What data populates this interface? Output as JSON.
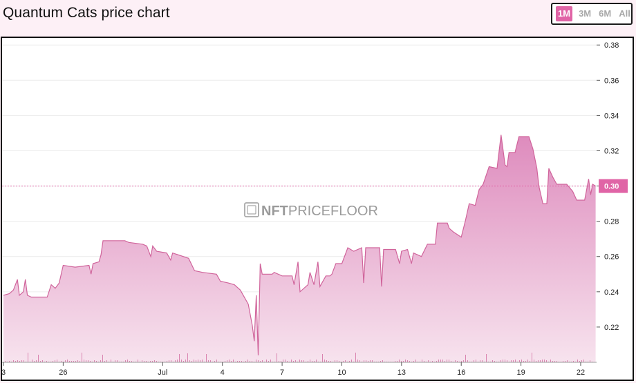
{
  "header": {
    "title": "Quantum Cats price chart",
    "ranges": [
      {
        "label": "1M",
        "active": true
      },
      {
        "label": "3M",
        "active": false
      },
      {
        "label": "6M",
        "active": false
      },
      {
        "label": "All",
        "active": false
      }
    ]
  },
  "watermark": {
    "prefix": "NFT",
    "suffix": "PRICEFLOOR"
  },
  "colors": {
    "line": "#d0649b",
    "fill_top": "#de8bbd",
    "fill_bottom": "#f7e3ee",
    "accent": "#e064a6",
    "grid": "#ececec"
  },
  "chart_data": {
    "type": "area",
    "title": "Quantum Cats price chart",
    "xlabel": "",
    "ylabel": "",
    "ylim": [
      0.2,
      0.384
    ],
    "y_ticks": [
      "0.22",
      "0.24",
      "0.26",
      "0.28",
      "0.30",
      "0.32",
      "0.34",
      "0.36",
      "0.38"
    ],
    "x_ticks": [
      {
        "label": "3",
        "day": 0
      },
      {
        "label": "26",
        "day": 3
      },
      {
        "label": "Jul",
        "day": 8
      },
      {
        "label": "4",
        "day": 11
      },
      {
        "label": "7",
        "day": 14
      },
      {
        "label": "10",
        "day": 17
      },
      {
        "label": "13",
        "day": 20
      },
      {
        "label": "16",
        "day": 23
      },
      {
        "label": "19",
        "day": 26
      },
      {
        "label": "22",
        "day": 29
      }
    ],
    "current_price": {
      "value": 0.3,
      "label": "0.30"
    },
    "series": [
      {
        "values": [
          [
            0.0,
            0.238
          ],
          [
            0.3,
            0.239
          ],
          [
            0.5,
            0.241
          ],
          [
            0.7,
            0.247
          ],
          [
            0.8,
            0.238
          ],
          [
            1.0,
            0.24
          ],
          [
            1.1,
            0.247
          ],
          [
            1.2,
            0.238
          ],
          [
            1.4,
            0.237
          ],
          [
            2.2,
            0.237
          ],
          [
            2.4,
            0.244
          ],
          [
            2.6,
            0.242
          ],
          [
            2.8,
            0.245
          ],
          [
            3.0,
            0.255
          ],
          [
            3.6,
            0.254
          ],
          [
            4.3,
            0.255
          ],
          [
            4.4,
            0.25
          ],
          [
            4.5,
            0.256
          ],
          [
            4.8,
            0.257
          ],
          [
            4.9,
            0.261
          ],
          [
            5.0,
            0.269
          ],
          [
            6.1,
            0.269
          ],
          [
            6.3,
            0.268
          ],
          [
            7.0,
            0.267
          ],
          [
            7.2,
            0.266
          ],
          [
            7.4,
            0.26
          ],
          [
            7.5,
            0.266
          ],
          [
            7.7,
            0.263
          ],
          [
            8.2,
            0.262
          ],
          [
            8.4,
            0.258
          ],
          [
            8.5,
            0.262
          ],
          [
            9.3,
            0.259
          ],
          [
            9.6,
            0.252
          ],
          [
            10.0,
            0.251
          ],
          [
            10.7,
            0.25
          ],
          [
            10.9,
            0.246
          ],
          [
            11.3,
            0.245
          ],
          [
            11.6,
            0.244
          ],
          [
            11.9,
            0.241
          ],
          [
            12.3,
            0.233
          ],
          [
            12.5,
            0.221
          ],
          [
            12.6,
            0.212
          ],
          [
            12.7,
            0.238
          ],
          [
            12.8,
            0.204
          ],
          [
            12.9,
            0.256
          ],
          [
            13.0,
            0.25
          ],
          [
            13.5,
            0.25
          ],
          [
            13.6,
            0.251
          ],
          [
            14.0,
            0.249
          ],
          [
            14.5,
            0.249
          ],
          [
            14.6,
            0.244
          ],
          [
            14.8,
            0.257
          ],
          [
            14.9,
            0.24
          ],
          [
            15.3,
            0.244
          ],
          [
            15.4,
            0.251
          ],
          [
            15.6,
            0.244
          ],
          [
            15.8,
            0.257
          ],
          [
            15.9,
            0.243
          ],
          [
            16.2,
            0.249
          ],
          [
            16.4,
            0.249
          ],
          [
            16.5,
            0.25
          ],
          [
            16.7,
            0.256
          ],
          [
            17.0,
            0.256
          ],
          [
            17.3,
            0.265
          ],
          [
            17.6,
            0.263
          ],
          [
            18.0,
            0.265
          ],
          [
            18.1,
            0.245
          ],
          [
            18.2,
            0.265
          ],
          [
            18.9,
            0.265
          ],
          [
            19.0,
            0.243
          ],
          [
            19.1,
            0.264
          ],
          [
            19.7,
            0.264
          ],
          [
            19.9,
            0.256
          ],
          [
            20.0,
            0.263
          ],
          [
            20.3,
            0.264
          ],
          [
            20.5,
            0.256
          ],
          [
            20.6,
            0.262
          ],
          [
            21.0,
            0.26
          ],
          [
            21.3,
            0.267
          ],
          [
            21.7,
            0.267
          ],
          [
            21.8,
            0.279
          ],
          [
            22.3,
            0.279
          ],
          [
            22.4,
            0.276
          ],
          [
            22.6,
            0.274
          ],
          [
            23.0,
            0.271
          ],
          [
            23.2,
            0.28
          ],
          [
            23.4,
            0.29
          ],
          [
            23.7,
            0.289
          ],
          [
            23.9,
            0.298
          ],
          [
            24.1,
            0.301
          ],
          [
            24.4,
            0.311
          ],
          [
            24.8,
            0.31
          ],
          [
            25.0,
            0.329
          ],
          [
            25.2,
            0.312
          ],
          [
            25.3,
            0.311
          ],
          [
            25.4,
            0.319
          ],
          [
            25.7,
            0.319
          ],
          [
            25.9,
            0.328
          ],
          [
            26.4,
            0.328
          ],
          [
            26.6,
            0.321
          ],
          [
            26.8,
            0.31
          ],
          [
            26.9,
            0.3
          ],
          [
            27.1,
            0.29
          ],
          [
            27.3,
            0.29
          ],
          [
            27.4,
            0.31
          ],
          [
            27.6,
            0.305
          ],
          [
            27.8,
            0.301
          ],
          [
            28.3,
            0.301
          ],
          [
            28.6,
            0.297
          ],
          [
            28.8,
            0.292
          ],
          [
            29.2,
            0.292
          ],
          [
            29.4,
            0.304
          ],
          [
            29.5,
            0.295
          ],
          [
            29.6,
            0.301
          ],
          [
            29.75,
            0.3
          ]
        ]
      }
    ]
  }
}
